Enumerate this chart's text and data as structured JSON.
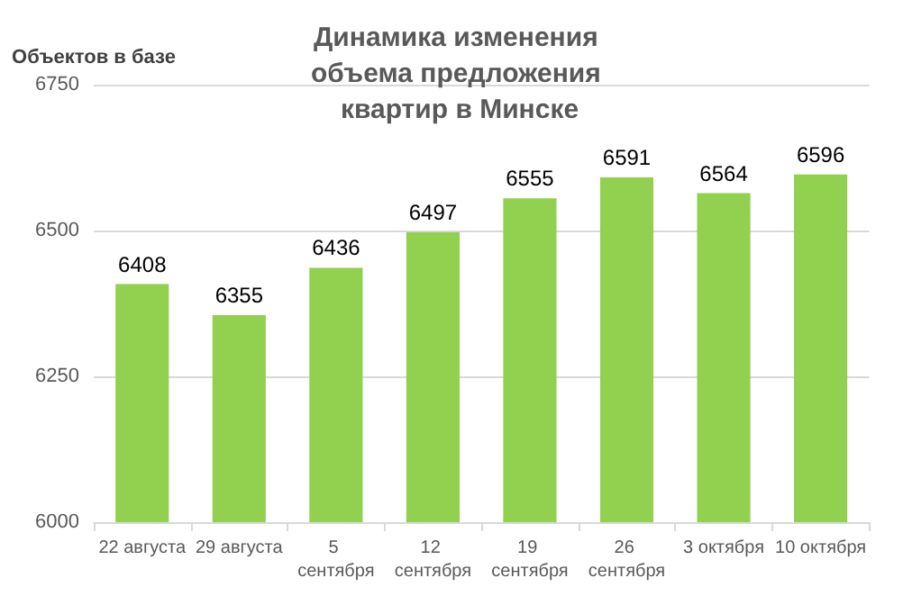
{
  "chart_data": {
    "type": "bar",
    "title": "Динамика изменения объема предложения квартир в Минске",
    "ylabel": "Объектов в базе",
    "categories": [
      "22 августа",
      "29 августа",
      "5 сентября",
      "12 сентября",
      "19 сентября",
      "26 сентября",
      "3 октября",
      "10 октября"
    ],
    "values": [
      6408,
      6355,
      6436,
      6497,
      6555,
      6591,
      6564,
      6596
    ],
    "color": "#92d050",
    "ylim": [
      6000,
      6750
    ],
    "yticks": [
      6000,
      6250,
      6500,
      6750
    ],
    "grid": "y",
    "data_labels": true
  }
}
